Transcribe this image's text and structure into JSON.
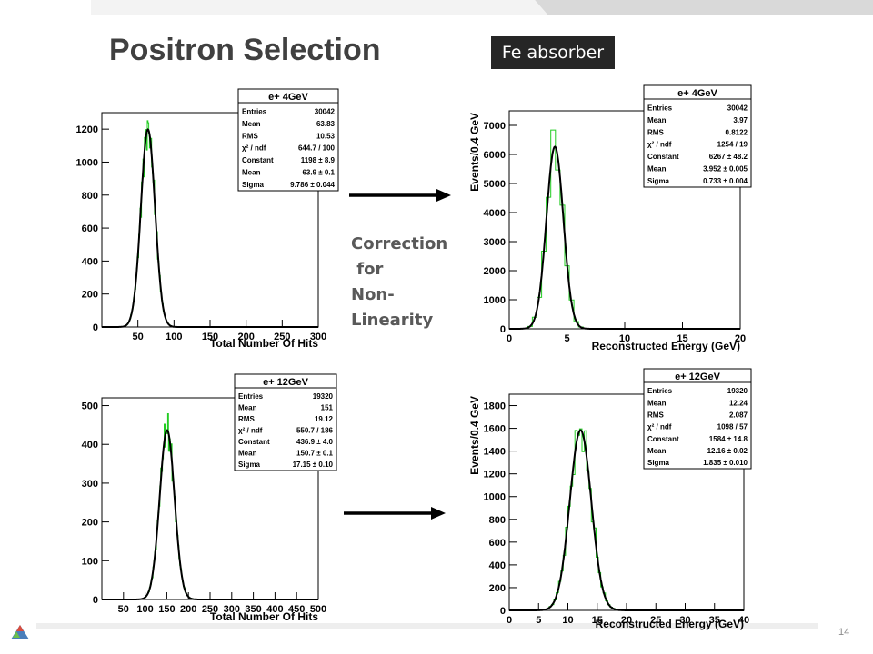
{
  "slide": {
    "title": "Positron Selection",
    "badge": "Fe absorber",
    "note_lines": [
      "Correction",
      " for",
      "Non-",
      "Linearity"
    ],
    "page_number": "14",
    "colors": {
      "histogram": "#22cc22",
      "fit": "#000000",
      "badge_bg": "#262626"
    }
  },
  "chart_data": [
    {
      "type": "area",
      "title": "e+ 4GeV",
      "xlabel": "Total Number Of Hits",
      "ylabel": "",
      "xlim": [
        0,
        300
      ],
      "ylim": [
        0,
        1300
      ],
      "xticks": [
        50,
        100,
        150,
        200,
        250,
        300
      ],
      "yticks": [
        0,
        200,
        400,
        600,
        800,
        1000,
        1200
      ],
      "bin_width": 1,
      "fit": {
        "constant": 1198,
        "mean": 63.9,
        "sigma": 9.786
      },
      "stats": [
        [
          "Entries",
          "30042"
        ],
        [
          "Mean",
          "63.83"
        ],
        [
          "RMS",
          "10.53"
        ],
        [
          "χ² / ndf",
          "644.7 / 100"
        ],
        [
          "Constant",
          "1198 ± 8.9"
        ],
        [
          "Mean",
          "63.9 ± 0.1"
        ],
        [
          "Sigma",
          "9.786 ± 0.044"
        ]
      ]
    },
    {
      "type": "area",
      "title": "e+ 4GeV",
      "xlabel": "Reconstructed Energy (GeV)",
      "ylabel": "Events/0.4 GeV",
      "xlim": [
        0,
        20
      ],
      "ylim": [
        0,
        7500
      ],
      "xticks": [
        0,
        5,
        10,
        15,
        20
      ],
      "yticks": [
        0,
        1000,
        2000,
        3000,
        4000,
        5000,
        6000,
        7000
      ],
      "bin_width": 0.4,
      "fit": {
        "constant": 6267,
        "mean": 3.952,
        "sigma": 0.733
      },
      "stats": [
        [
          "Entries",
          "30042"
        ],
        [
          "Mean",
          "3.97"
        ],
        [
          "RMS",
          "0.8122"
        ],
        [
          "χ² / ndf",
          "1254 / 19"
        ],
        [
          "Constant",
          "6267 ± 48.2"
        ],
        [
          "Mean",
          "3.952 ± 0.005"
        ],
        [
          "Sigma",
          "0.733 ± 0.004"
        ]
      ]
    },
    {
      "type": "area",
      "title": "e+ 12GeV",
      "xlabel": "Total Number Of Hits",
      "ylabel": "",
      "xlim": [
        0,
        500
      ],
      "ylim": [
        0,
        520
      ],
      "xticks": [
        50,
        100,
        150,
        200,
        250,
        300,
        350,
        400,
        450,
        500
      ],
      "yticks": [
        0,
        100,
        200,
        300,
        400,
        500
      ],
      "bin_width": 2,
      "fit": {
        "constant": 436.9,
        "mean": 150.7,
        "sigma": 17.15
      },
      "stats": [
        [
          "Entries",
          "19320"
        ],
        [
          "Mean",
          "151"
        ],
        [
          "RMS",
          "19.12"
        ],
        [
          "χ² / ndf",
          "550.7 / 186"
        ],
        [
          "Constant",
          "436.9 ± 4.0"
        ],
        [
          "Mean",
          "150.7 ± 0.1"
        ],
        [
          "Sigma",
          "17.15 ± 0.10"
        ]
      ]
    },
    {
      "type": "area",
      "title": "e+ 12GeV",
      "xlabel": "Reconstructed Energy (GeV)",
      "ylabel": "Events/0.4 GeV",
      "xlim": [
        0,
        40
      ],
      "ylim": [
        0,
        1900
      ],
      "xticks": [
        0,
        5,
        10,
        15,
        20,
        25,
        30,
        35,
        40
      ],
      "yticks": [
        0,
        200,
        400,
        600,
        800,
        1000,
        1200,
        1400,
        1600,
        1800
      ],
      "bin_width": 0.4,
      "fit": {
        "constant": 1584,
        "mean": 12.16,
        "sigma": 1.835
      },
      "stats": [
        [
          "Entries",
          "19320"
        ],
        [
          "Mean",
          "12.24"
        ],
        [
          "RMS",
          "2.087"
        ],
        [
          "χ² / ndf",
          "1098 / 57"
        ],
        [
          "Constant",
          "1584 ± 14.8"
        ],
        [
          "Mean",
          "12.16 ± 0.02"
        ],
        [
          "Sigma",
          "1.835 ± 0.010"
        ]
      ]
    }
  ]
}
